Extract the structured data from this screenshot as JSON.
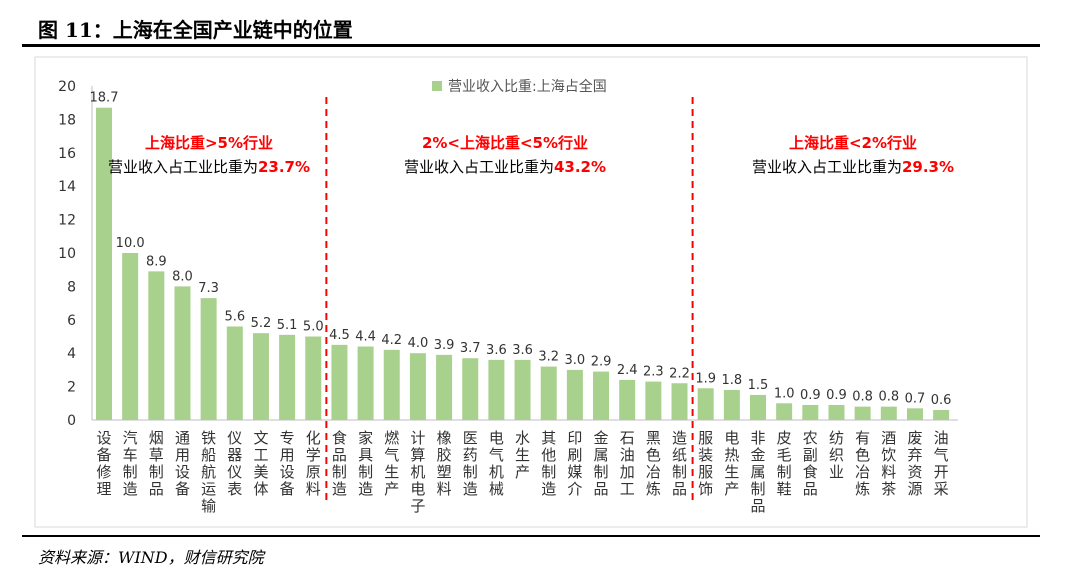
{
  "title": "图 11：上海在全国产业链中的位置",
  "source": "资料来源：WIND，财信研究院",
  "chart_data": {
    "type": "bar",
    "legend": "营业收入比重:上海占全国",
    "legend_position": "top-center",
    "ylim": [
      0,
      20
    ],
    "yticks": [
      0,
      2,
      4,
      6,
      8,
      10,
      12,
      14,
      16,
      18,
      20
    ],
    "color": "#a9d18e",
    "categories": [
      "设备修理",
      "汽车制造",
      "烟草制品",
      "通用设备",
      "铁船航运输",
      "仪器仪表",
      "文工美体",
      "专用设备",
      "化学原料",
      "食品制造",
      "家具制造",
      "燃气生产",
      "计算机电子",
      "橡胶塑料",
      "医药制造",
      "电气机械",
      "水生产",
      "其他制造",
      "印刷媒介",
      "金属制品",
      "石油加工",
      "黑色冶炼",
      "造纸制品",
      "服装服饰",
      "电热生产",
      "非金属制品",
      "皮毛制鞋",
      "农副食品",
      "纺织业",
      "有色冶炼",
      "酒饮料茶",
      "废弃资源",
      "油气开采"
    ],
    "values": [
      18.7,
      10.0,
      8.9,
      8.0,
      7.3,
      5.6,
      5.2,
      5.1,
      5.0,
      4.5,
      4.4,
      4.2,
      4.0,
      3.9,
      3.7,
      3.6,
      3.6,
      3.2,
      3.0,
      2.9,
      2.4,
      2.3,
      2.2,
      1.9,
      1.8,
      1.5,
      1.0,
      0.9,
      0.9,
      0.8,
      0.8,
      0.7,
      0.6
    ],
    "dividers_after_index": [
      8,
      22
    ],
    "annotations": [
      {
        "heading": "上海比重>5%行业",
        "text": "营业收入占工业比重为",
        "value": "23.7%"
      },
      {
        "heading": "2%<上海比重<5%行业",
        "text": "营业收入占工业比重为",
        "value": "43.2%"
      },
      {
        "heading": "上海比重<2%行业",
        "text": "营业收入占工业比重为",
        "value": "29.3%"
      }
    ],
    "accent": "#ff0000"
  }
}
